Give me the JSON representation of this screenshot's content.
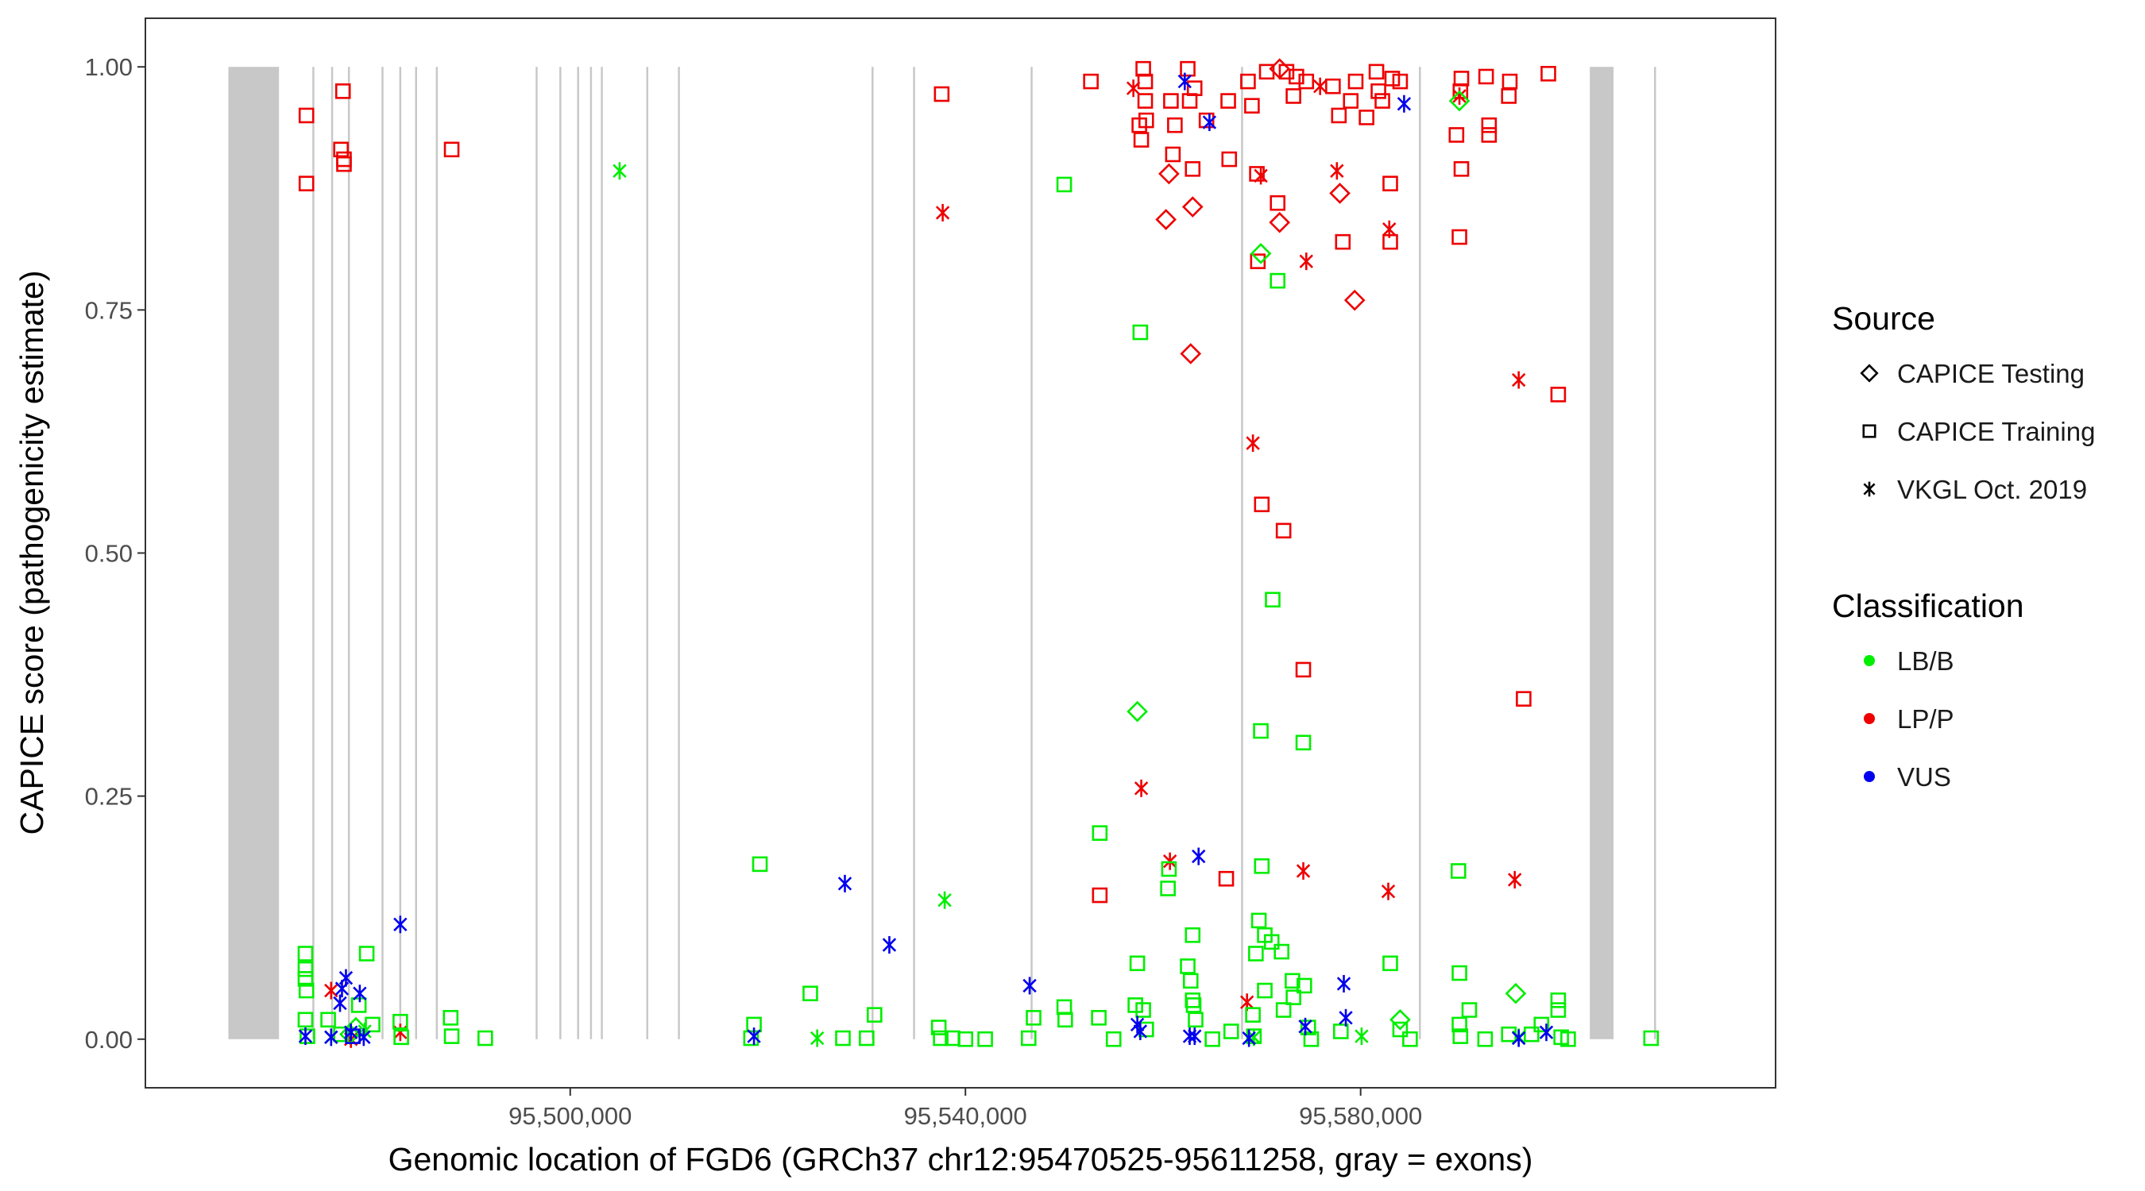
{
  "chart_data": {
    "type": "scatter",
    "title": "",
    "xlabel": "Genomic location of FGD6 (GRCh37 chr12:95470525-95611258, gray = exons)",
    "ylabel": "CAPICE score (pathogenicity estimate)",
    "xlim": [
      95457000,
      95622000
    ],
    "ylim": [
      -0.05,
      1.05
    ],
    "x_ticks": [
      95500000,
      95540000,
      95580000
    ],
    "x_tick_labels": [
      "95,500,000",
      "95,540,000",
      "95,580,000"
    ],
    "y_ticks": [
      0,
      0.25,
      0.5,
      0.75,
      1
    ],
    "y_tick_labels": [
      "0.00",
      "0.25",
      "0.50",
      "0.75",
      "1.00"
    ],
    "grid": false,
    "exons": [
      [
        95465400,
        95470525
      ],
      [
        95603200,
        95605600
      ],
      [
        95473900,
        95474100
      ],
      [
        95475800,
        95476000
      ],
      [
        95477500,
        95477700
      ],
      [
        95480900,
        95481100
      ],
      [
        95482700,
        95482900
      ],
      [
        95484300,
        95484500
      ],
      [
        95486400,
        95486600
      ],
      [
        95496500,
        95496700
      ],
      [
        95498900,
        95499100
      ],
      [
        95500700,
        95500900
      ],
      [
        95502000,
        95502200
      ],
      [
        95503100,
        95503300
      ],
      [
        95507700,
        95507900
      ],
      [
        95510900,
        95511100
      ],
      [
        95530500,
        95530700
      ],
      [
        95534700,
        95534900
      ],
      [
        95546600,
        95546800
      ],
      [
        95567900,
        95568100
      ],
      [
        95585900,
        95586100
      ],
      [
        95609700,
        95609900
      ]
    ],
    "legend": {
      "source_title": "Source",
      "source_items": [
        {
          "label": "CAPICE Testing",
          "shape": "diamond"
        },
        {
          "label": "CAPICE Training",
          "shape": "square"
        },
        {
          "label": "VKGL Oct. 2019",
          "shape": "star"
        }
      ],
      "class_title": "Classification",
      "class_items": [
        {
          "label": "LB/B",
          "color": "#00ee00"
        },
        {
          "label": "LP/P",
          "color": "#ee0000"
        },
        {
          "label": "VUS",
          "color": "#0000ee"
        }
      ]
    },
    "series": [
      {
        "name": "LP/P - CAPICE Training",
        "class": "LP/P",
        "source": "CAPICE Training",
        "points": [
          [
            95473300,
            0.95
          ],
          [
            95473300,
            0.88
          ],
          [
            95476800,
            0.915
          ],
          [
            95477000,
            0.975
          ],
          [
            95477100,
            0.905
          ],
          [
            95477100,
            0.9
          ],
          [
            95488000,
            0.915
          ],
          [
            95537600,
            0.972
          ],
          [
            95552700,
            0.985
          ],
          [
            95557600,
            0.94
          ],
          [
            95557800,
            0.925
          ],
          [
            95558000,
            0.998
          ],
          [
            95558200,
            0.985
          ],
          [
            95558200,
            0.965
          ],
          [
            95558300,
            0.945
          ],
          [
            95560800,
            0.965
          ],
          [
            95561000,
            0.91
          ],
          [
            95561200,
            0.94
          ],
          [
            95562500,
            0.998
          ],
          [
            95562700,
            0.965
          ],
          [
            95563000,
            0.895
          ],
          [
            95563200,
            0.978
          ],
          [
            95564400,
            0.945
          ],
          [
            95566600,
            0.965
          ],
          [
            95566700,
            0.905
          ],
          [
            95568600,
            0.985
          ],
          [
            95569000,
            0.96
          ],
          [
            95569500,
            0.89
          ],
          [
            95569600,
            0.8
          ],
          [
            95571600,
            0.86
          ],
          [
            95573200,
            0.97
          ],
          [
            95573500,
            0.99
          ],
          [
            95574500,
            0.985
          ],
          [
            95577200,
            0.98
          ],
          [
            95577800,
            0.95
          ],
          [
            95578200,
            0.82
          ],
          [
            95579000,
            0.965
          ],
          [
            95580600,
            0.948
          ],
          [
            95581600,
            0.995
          ],
          [
            95581800,
            0.975
          ],
          [
            95582200,
            0.965
          ],
          [
            95583000,
            0.88
          ],
          [
            95583000,
            0.82
          ],
          [
            95583200,
            0.988
          ],
          [
            95584000,
            0.985
          ],
          [
            95589700,
            0.93
          ],
          [
            95590000,
            0.825
          ],
          [
            95590200,
            0.895
          ],
          [
            95590200,
            0.988
          ],
          [
            95590100,
            0.975
          ],
          [
            95592700,
            0.99
          ],
          [
            95593000,
            0.94
          ],
          [
            95593000,
            0.93
          ],
          [
            95595000,
            0.97
          ],
          [
            95595100,
            0.985
          ],
          [
            95596500,
            0.35
          ],
          [
            95599000,
            0.993
          ],
          [
            95600000,
            0.663
          ],
          [
            95553600,
            0.148
          ],
          [
            95566400,
            0.165
          ],
          [
            95570000,
            0.55
          ],
          [
            95572200,
            0.523
          ],
          [
            95574200,
            0.38
          ],
          [
            95570500,
            0.995
          ],
          [
            95572500,
            0.995
          ],
          [
            95579500,
            0.985
          ]
        ]
      },
      {
        "name": "LP/P - CAPICE Testing",
        "class": "LP/P",
        "source": "CAPICE Testing",
        "points": [
          [
            95560300,
            0.843
          ],
          [
            95560600,
            0.89
          ],
          [
            95563000,
            0.856
          ],
          [
            95562800,
            0.705
          ],
          [
            95571800,
            0.84
          ],
          [
            95571800,
            0.998
          ],
          [
            95577900,
            0.87
          ],
          [
            95579400,
            0.76
          ]
        ]
      },
      {
        "name": "LP/P - VKGL Oct. 2019",
        "class": "LP/P",
        "source": "VKGL Oct. 2019",
        "points": [
          [
            95475800,
            0.05
          ],
          [
            95477800,
            0.0
          ],
          [
            95482800,
            0.007
          ],
          [
            95537700,
            0.85
          ],
          [
            95557800,
            0.258
          ],
          [
            95560700,
            0.183
          ],
          [
            95568500,
            0.038
          ],
          [
            95569100,
            0.613
          ],
          [
            95569900,
            0.888
          ],
          [
            95574200,
            0.173
          ],
          [
            95574500,
            0.8
          ],
          [
            95577600,
            0.893
          ],
          [
            95582900,
            0.833
          ],
          [
            95582800,
            0.152
          ],
          [
            95596000,
            0.678
          ],
          [
            95595600,
            0.164
          ],
          [
            95557000,
            0.978
          ],
          [
            95575900,
            0.98
          ],
          [
            95590000,
            0.97
          ]
        ]
      },
      {
        "name": "LB/B - CAPICE Training",
        "class": "LB/B",
        "source": "CAPICE Training",
        "points": [
          [
            95473200,
            0.088
          ],
          [
            95473200,
            0.072
          ],
          [
            95473200,
            0.062
          ],
          [
            95473300,
            0.05
          ],
          [
            95473200,
            0.02
          ],
          [
            95473400,
            0.003
          ],
          [
            95475500,
            0.02
          ],
          [
            95476800,
            0.005
          ],
          [
            95478600,
            0.035
          ],
          [
            95479400,
            0.088
          ],
          [
            95480000,
            0.015
          ],
          [
            95482800,
            0.018
          ],
          [
            95482900,
            0.002
          ],
          [
            95487900,
            0.022
          ],
          [
            95488000,
            0.003
          ],
          [
            95491400,
            0.001
          ],
          [
            95518300,
            0.001
          ],
          [
            95518600,
            0.015
          ],
          [
            95519200,
            0.18
          ],
          [
            95524300,
            0.047
          ],
          [
            95527600,
            0.001
          ],
          [
            95530000,
            0.001
          ],
          [
            95530800,
            0.025
          ],
          [
            95537300,
            0.012
          ],
          [
            95537500,
            0.001
          ],
          [
            95538700,
            0.001
          ],
          [
            95546400,
            0.001
          ],
          [
            95546900,
            0.022
          ],
          [
            95550000,
            0.879
          ],
          [
            95550000,
            0.033
          ],
          [
            95550100,
            0.02
          ],
          [
            95553500,
            0.022
          ],
          [
            95553600,
            0.212
          ],
          [
            95557200,
            0.035
          ],
          [
            95557400,
            0.078
          ],
          [
            95557700,
            0.727
          ],
          [
            95558000,
            0.03
          ],
          [
            95558300,
            0.01
          ],
          [
            95560500,
            0.155
          ],
          [
            95560600,
            0.175
          ],
          [
            95562500,
            0.075
          ],
          [
            95562800,
            0.06
          ],
          [
            95563000,
            0.107
          ],
          [
            95563000,
            0.04
          ],
          [
            95563100,
            0.035
          ],
          [
            95563300,
            0.02
          ],
          [
            95566900,
            0.008
          ],
          [
            95569100,
            0.025
          ],
          [
            95569200,
            0.003
          ],
          [
            95569400,
            0.088
          ],
          [
            95569700,
            0.122
          ],
          [
            95569900,
            0.317
          ],
          [
            95570000,
            0.178
          ],
          [
            95570300,
            0.05
          ],
          [
            95570300,
            0.107
          ],
          [
            95571100,
            0.452
          ],
          [
            95571000,
            0.1
          ],
          [
            95571600,
            0.78
          ],
          [
            95572000,
            0.09
          ],
          [
            95572200,
            0.03
          ],
          [
            95573100,
            0.06
          ],
          [
            95574200,
            0.305
          ],
          [
            95574300,
            0.055
          ],
          [
            95573200,
            0.043
          ],
          [
            95574700,
            0.012
          ],
          [
            95578000,
            0.008
          ],
          [
            95583000,
            0.078
          ],
          [
            95584000,
            0.01
          ],
          [
            95589900,
            0.173
          ],
          [
            95590000,
            0.068
          ],
          [
            95590000,
            0.015
          ],
          [
            95590100,
            0.003
          ],
          [
            95591000,
            0.03
          ],
          [
            95592600,
            0.0
          ],
          [
            95595000,
            0.005
          ],
          [
            95597300,
            0.005
          ],
          [
            95598300,
            0.015
          ],
          [
            95600000,
            0.04
          ],
          [
            95600000,
            0.03
          ],
          [
            95600300,
            0.002
          ],
          [
            95609400,
            0.001
          ],
          [
            95540000,
            0.0
          ],
          [
            95542000,
            0.0
          ],
          [
            95555000,
            0.0
          ],
          [
            95565000,
            0.0
          ],
          [
            95575000,
            0.0
          ],
          [
            95585000,
            0.0
          ],
          [
            95601000,
            0.0
          ]
        ]
      },
      {
        "name": "LB/B - CAPICE Testing",
        "class": "LB/B",
        "source": "CAPICE Testing",
        "points": [
          [
            95557400,
            0.337
          ],
          [
            95569900,
            0.808
          ],
          [
            95595700,
            0.047
          ],
          [
            95590000,
            0.965
          ],
          [
            95584000,
            0.02
          ],
          [
            95477700,
            0.005
          ],
          [
            95478300,
            0.012
          ]
        ]
      },
      {
        "name": "LB/B - VKGL Oct. 2019",
        "class": "LB/B",
        "source": "VKGL Oct. 2019",
        "points": [
          [
            95505000,
            0.893
          ],
          [
            95525000,
            0.001
          ],
          [
            95537900,
            0.143
          ],
          [
            95475800,
            0.002
          ],
          [
            95479200,
            0.008
          ],
          [
            95569200,
            0.002
          ],
          [
            95580100,
            0.003
          ],
          [
            95596000,
            0.002
          ]
        ]
      },
      {
        "name": "VUS - CAPICE Training",
        "class": "VUS",
        "source": "CAPICE Training",
        "points": [
          [
            95478000,
            0.003
          ]
        ]
      },
      {
        "name": "VUS - VKGL Oct. 2019",
        "class": "VUS",
        "source": "VKGL Oct. 2019",
        "points": [
          [
            95473200,
            0.003
          ],
          [
            95475800,
            0.002
          ],
          [
            95476700,
            0.037
          ],
          [
            95476900,
            0.052
          ],
          [
            95477300,
            0.063
          ],
          [
            95477800,
            0.007
          ],
          [
            95478700,
            0.047
          ],
          [
            95479100,
            0.002
          ],
          [
            95482800,
            0.118
          ],
          [
            95518600,
            0.003
          ],
          [
            95527800,
            0.16
          ],
          [
            95532300,
            0.097
          ],
          [
            95546500,
            0.055
          ],
          [
            95557400,
            0.015
          ],
          [
            95557700,
            0.008
          ],
          [
            95562200,
            0.985
          ],
          [
            95562700,
            0.003
          ],
          [
            95563200,
            0.003
          ],
          [
            95563600,
            0.188
          ],
          [
            95564700,
            0.943
          ],
          [
            95568700,
            0.001
          ],
          [
            95574400,
            0.013
          ],
          [
            95578300,
            0.057
          ],
          [
            95578500,
            0.022
          ],
          [
            95584400,
            0.962
          ],
          [
            95596000,
            0.001
          ],
          [
            95598800,
            0.007
          ]
        ]
      }
    ]
  }
}
